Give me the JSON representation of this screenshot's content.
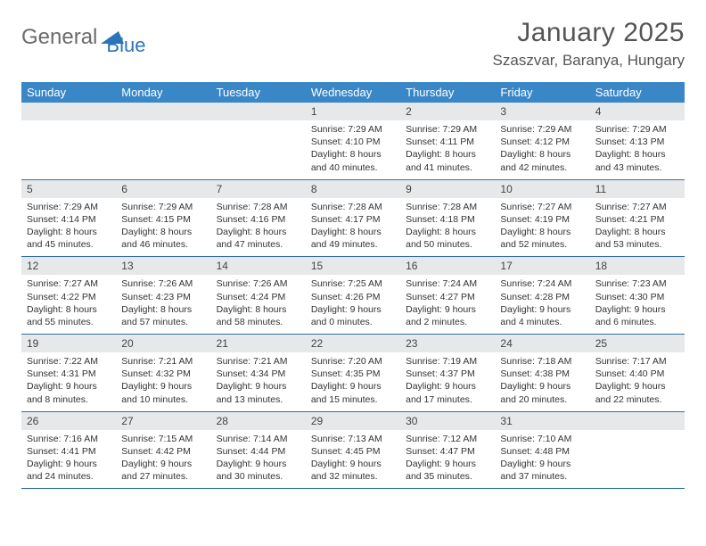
{
  "brand": {
    "name1": "General",
    "name2": "Blue"
  },
  "title": "January 2025",
  "location": "Szaszvar, Baranya, Hungary",
  "colors": {
    "header_bg": "#3a87c7",
    "header_text": "#ffffff",
    "daynum_bg": "#e6e8ea",
    "cell_border": "#2f6fa8",
    "text": "#333333",
    "brand_gray": "#6b6b6b",
    "brand_blue": "#2a74ba"
  },
  "dow": [
    "Sunday",
    "Monday",
    "Tuesday",
    "Wednesday",
    "Thursday",
    "Friday",
    "Saturday"
  ],
  "weeks": [
    [
      {
        "n": "",
        "sr": "",
        "ss": "",
        "dl": ""
      },
      {
        "n": "",
        "sr": "",
        "ss": "",
        "dl": ""
      },
      {
        "n": "",
        "sr": "",
        "ss": "",
        "dl": ""
      },
      {
        "n": "1",
        "sr": "Sunrise: 7:29 AM",
        "ss": "Sunset: 4:10 PM",
        "dl": "Daylight: 8 hours and 40 minutes."
      },
      {
        "n": "2",
        "sr": "Sunrise: 7:29 AM",
        "ss": "Sunset: 4:11 PM",
        "dl": "Daylight: 8 hours and 41 minutes."
      },
      {
        "n": "3",
        "sr": "Sunrise: 7:29 AM",
        "ss": "Sunset: 4:12 PM",
        "dl": "Daylight: 8 hours and 42 minutes."
      },
      {
        "n": "4",
        "sr": "Sunrise: 7:29 AM",
        "ss": "Sunset: 4:13 PM",
        "dl": "Daylight: 8 hours and 43 minutes."
      }
    ],
    [
      {
        "n": "5",
        "sr": "Sunrise: 7:29 AM",
        "ss": "Sunset: 4:14 PM",
        "dl": "Daylight: 8 hours and 45 minutes."
      },
      {
        "n": "6",
        "sr": "Sunrise: 7:29 AM",
        "ss": "Sunset: 4:15 PM",
        "dl": "Daylight: 8 hours and 46 minutes."
      },
      {
        "n": "7",
        "sr": "Sunrise: 7:28 AM",
        "ss": "Sunset: 4:16 PM",
        "dl": "Daylight: 8 hours and 47 minutes."
      },
      {
        "n": "8",
        "sr": "Sunrise: 7:28 AM",
        "ss": "Sunset: 4:17 PM",
        "dl": "Daylight: 8 hours and 49 minutes."
      },
      {
        "n": "9",
        "sr": "Sunrise: 7:28 AM",
        "ss": "Sunset: 4:18 PM",
        "dl": "Daylight: 8 hours and 50 minutes."
      },
      {
        "n": "10",
        "sr": "Sunrise: 7:27 AM",
        "ss": "Sunset: 4:19 PM",
        "dl": "Daylight: 8 hours and 52 minutes."
      },
      {
        "n": "11",
        "sr": "Sunrise: 7:27 AM",
        "ss": "Sunset: 4:21 PM",
        "dl": "Daylight: 8 hours and 53 minutes."
      }
    ],
    [
      {
        "n": "12",
        "sr": "Sunrise: 7:27 AM",
        "ss": "Sunset: 4:22 PM",
        "dl": "Daylight: 8 hours and 55 minutes."
      },
      {
        "n": "13",
        "sr": "Sunrise: 7:26 AM",
        "ss": "Sunset: 4:23 PM",
        "dl": "Daylight: 8 hours and 57 minutes."
      },
      {
        "n": "14",
        "sr": "Sunrise: 7:26 AM",
        "ss": "Sunset: 4:24 PM",
        "dl": "Daylight: 8 hours and 58 minutes."
      },
      {
        "n": "15",
        "sr": "Sunrise: 7:25 AM",
        "ss": "Sunset: 4:26 PM",
        "dl": "Daylight: 9 hours and 0 minutes."
      },
      {
        "n": "16",
        "sr": "Sunrise: 7:24 AM",
        "ss": "Sunset: 4:27 PM",
        "dl": "Daylight: 9 hours and 2 minutes."
      },
      {
        "n": "17",
        "sr": "Sunrise: 7:24 AM",
        "ss": "Sunset: 4:28 PM",
        "dl": "Daylight: 9 hours and 4 minutes."
      },
      {
        "n": "18",
        "sr": "Sunrise: 7:23 AM",
        "ss": "Sunset: 4:30 PM",
        "dl": "Daylight: 9 hours and 6 minutes."
      }
    ],
    [
      {
        "n": "19",
        "sr": "Sunrise: 7:22 AM",
        "ss": "Sunset: 4:31 PM",
        "dl": "Daylight: 9 hours and 8 minutes."
      },
      {
        "n": "20",
        "sr": "Sunrise: 7:21 AM",
        "ss": "Sunset: 4:32 PM",
        "dl": "Daylight: 9 hours and 10 minutes."
      },
      {
        "n": "21",
        "sr": "Sunrise: 7:21 AM",
        "ss": "Sunset: 4:34 PM",
        "dl": "Daylight: 9 hours and 13 minutes."
      },
      {
        "n": "22",
        "sr": "Sunrise: 7:20 AM",
        "ss": "Sunset: 4:35 PM",
        "dl": "Daylight: 9 hours and 15 minutes."
      },
      {
        "n": "23",
        "sr": "Sunrise: 7:19 AM",
        "ss": "Sunset: 4:37 PM",
        "dl": "Daylight: 9 hours and 17 minutes."
      },
      {
        "n": "24",
        "sr": "Sunrise: 7:18 AM",
        "ss": "Sunset: 4:38 PM",
        "dl": "Daylight: 9 hours and 20 minutes."
      },
      {
        "n": "25",
        "sr": "Sunrise: 7:17 AM",
        "ss": "Sunset: 4:40 PM",
        "dl": "Daylight: 9 hours and 22 minutes."
      }
    ],
    [
      {
        "n": "26",
        "sr": "Sunrise: 7:16 AM",
        "ss": "Sunset: 4:41 PM",
        "dl": "Daylight: 9 hours and 24 minutes."
      },
      {
        "n": "27",
        "sr": "Sunrise: 7:15 AM",
        "ss": "Sunset: 4:42 PM",
        "dl": "Daylight: 9 hours and 27 minutes."
      },
      {
        "n": "28",
        "sr": "Sunrise: 7:14 AM",
        "ss": "Sunset: 4:44 PM",
        "dl": "Daylight: 9 hours and 30 minutes."
      },
      {
        "n": "29",
        "sr": "Sunrise: 7:13 AM",
        "ss": "Sunset: 4:45 PM",
        "dl": "Daylight: 9 hours and 32 minutes."
      },
      {
        "n": "30",
        "sr": "Sunrise: 7:12 AM",
        "ss": "Sunset: 4:47 PM",
        "dl": "Daylight: 9 hours and 35 minutes."
      },
      {
        "n": "31",
        "sr": "Sunrise: 7:10 AM",
        "ss": "Sunset: 4:48 PM",
        "dl": "Daylight: 9 hours and 37 minutes."
      },
      {
        "n": "",
        "sr": "",
        "ss": "",
        "dl": ""
      }
    ]
  ]
}
